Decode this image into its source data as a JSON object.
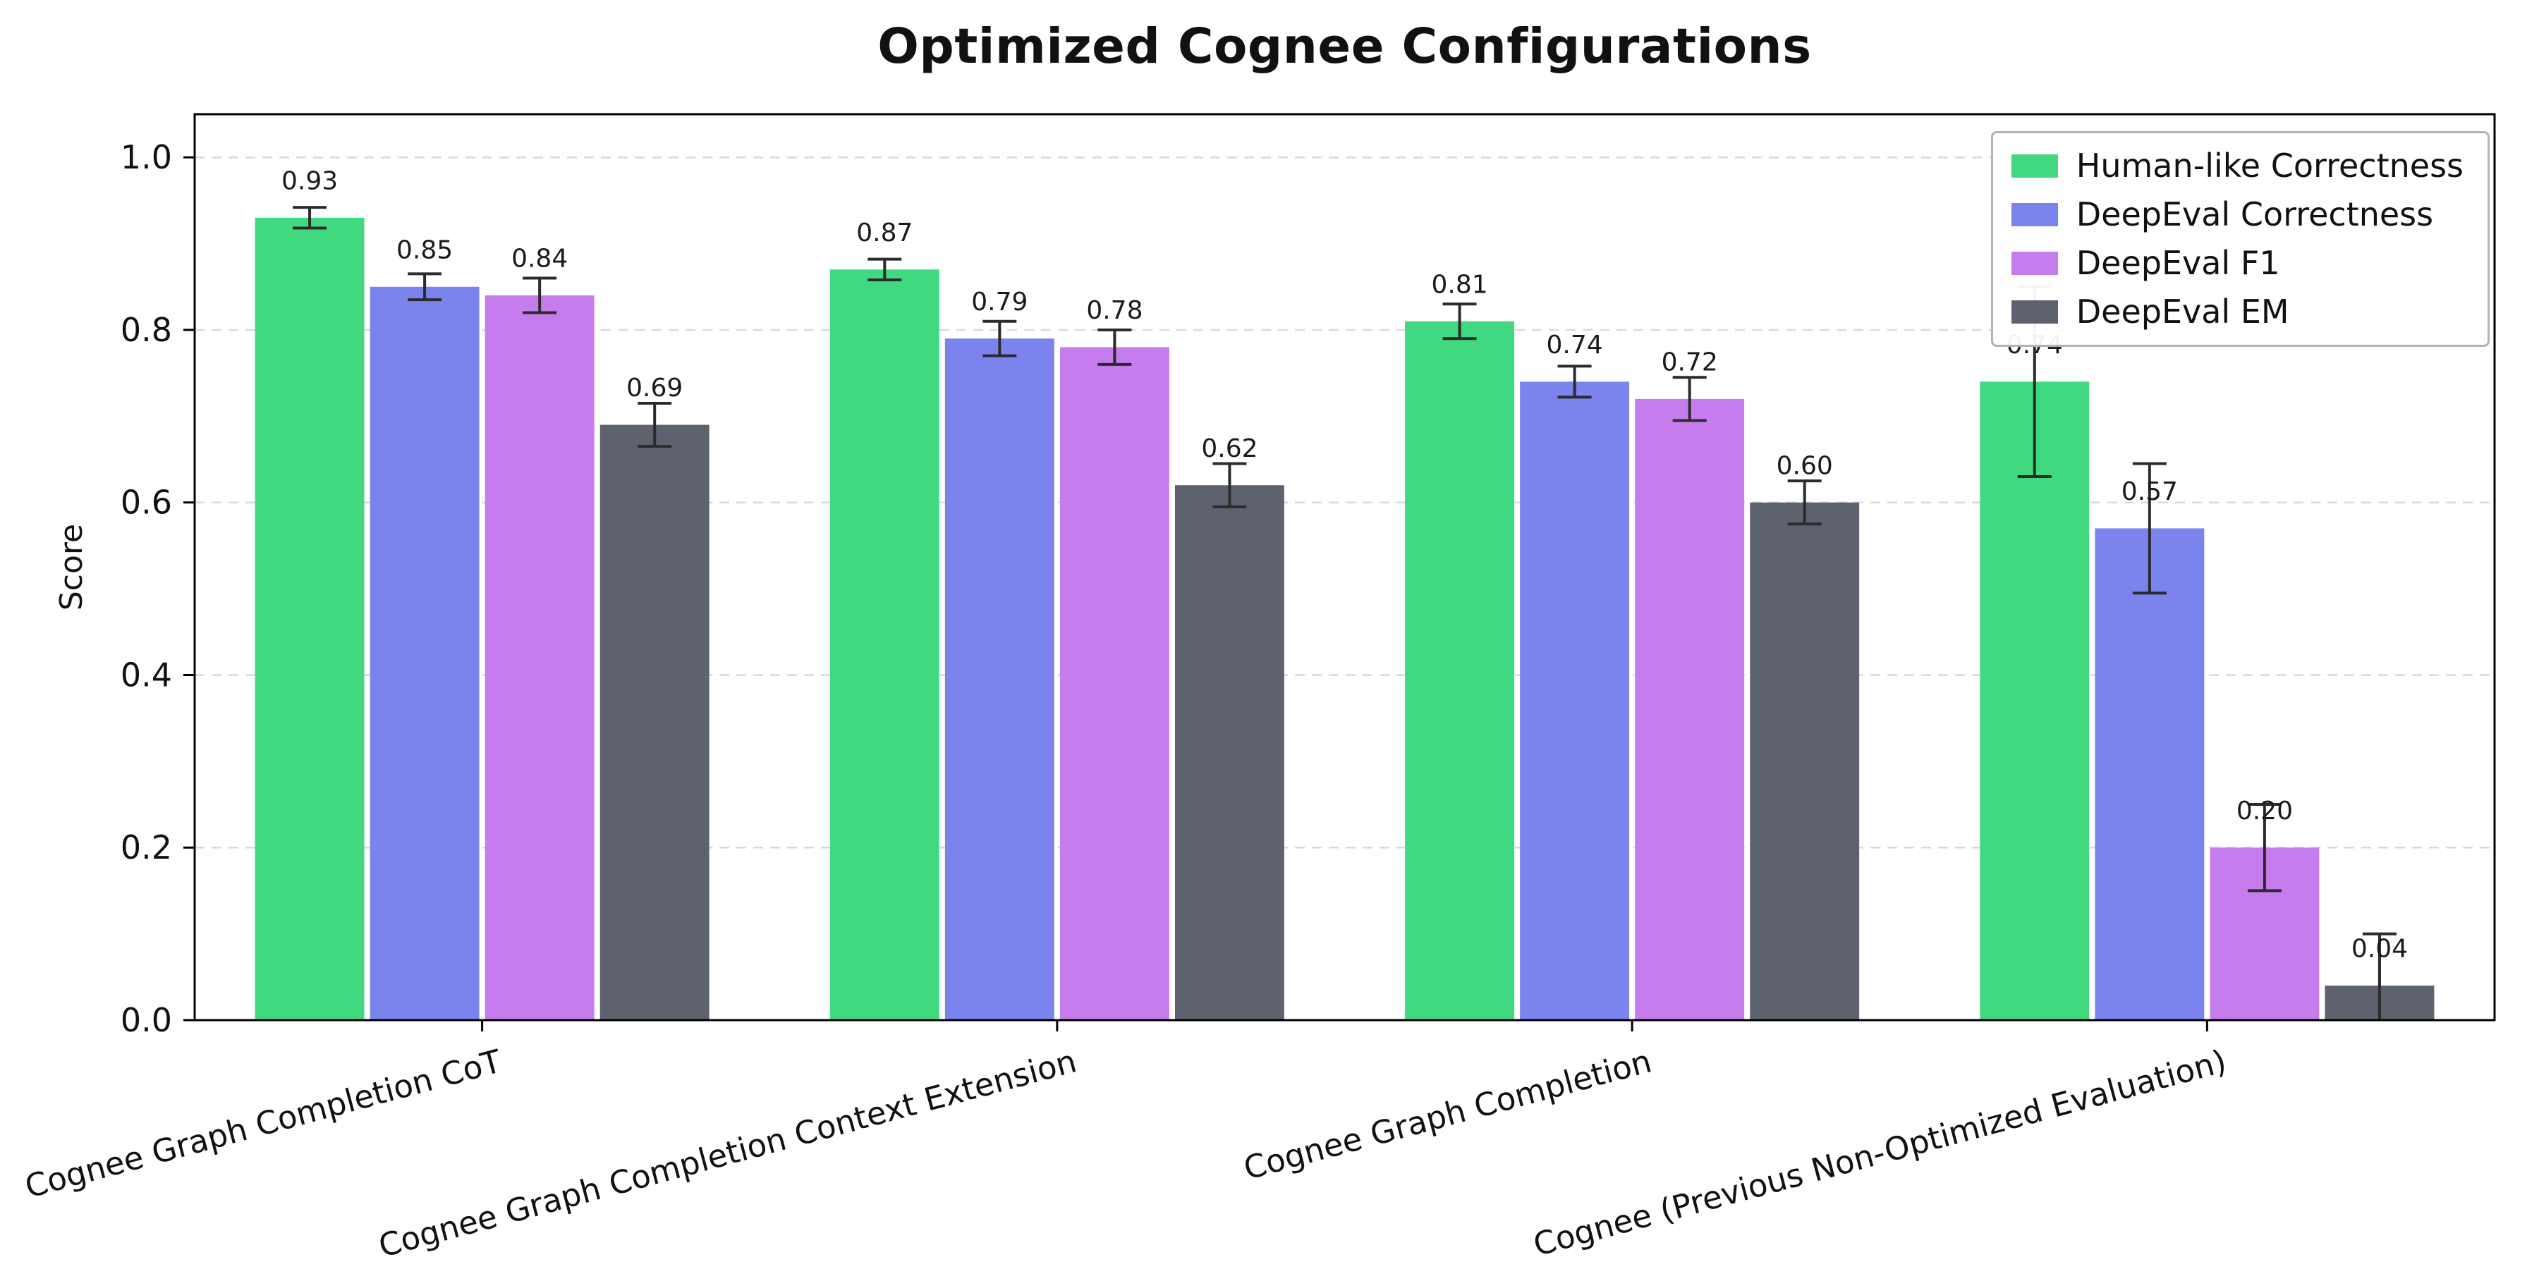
{
  "chart_data": {
    "type": "bar",
    "title": "Optimized Cognee Configurations",
    "ylabel": "Score",
    "xlabel": "",
    "ylim": [
      0,
      1.05
    ],
    "yticks": [
      0.0,
      0.2,
      0.4,
      0.6,
      0.8,
      1.0
    ],
    "grid": "horizontal dashed",
    "legend_position": "upper right",
    "categories": [
      "Cognee Graph Completion CoT",
      "Cognee Graph Completion Context Extension",
      "Cognee Graph Completion",
      "Cognee (Previous Non-Optimized Evaluation)"
    ],
    "series": [
      {
        "name": "Human-like Correctness",
        "color": "#41d97f",
        "values": [
          0.93,
          0.87,
          0.81,
          0.74
        ],
        "errors": [
          0.012,
          0.012,
          0.02,
          0.11
        ]
      },
      {
        "name": "DeepEval Correctness",
        "color": "#7b83ec",
        "values": [
          0.85,
          0.79,
          0.74,
          0.57
        ],
        "errors": [
          0.015,
          0.02,
          0.018,
          0.075
        ]
      },
      {
        "name": "DeepEval F1",
        "color": "#c77ced",
        "values": [
          0.84,
          0.78,
          0.72,
          0.2
        ],
        "errors": [
          0.02,
          0.02,
          0.025,
          0.05
        ]
      },
      {
        "name": "DeepEval EM",
        "color": "#5d626e",
        "values": [
          0.69,
          0.62,
          0.6,
          0.04
        ],
        "errors": [
          0.025,
          0.025,
          0.025,
          0.06
        ]
      }
    ],
    "style": {
      "grid_color": "#d9d9d9",
      "axis_color": "#000000",
      "errorbar_color": "#2b2b2b",
      "bar_label_color": "#1a1a1a",
      "background": "#ffffff"
    }
  }
}
